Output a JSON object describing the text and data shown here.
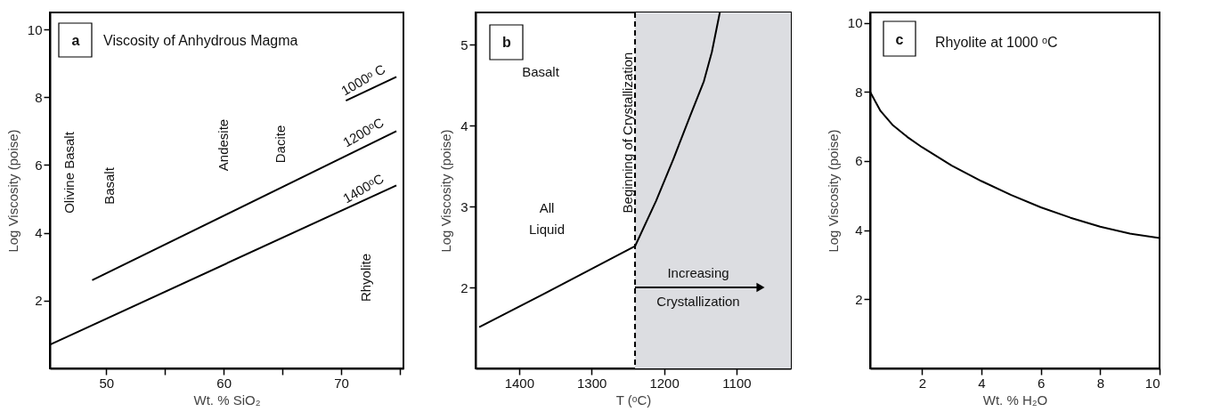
{
  "chart_data": [
    {
      "type": "line",
      "title": "Viscosity of Anhydrous Magma",
      "xlabel": "Wt. % SiO₂",
      "ylabel": "Log Viscosity (poise)",
      "xlim": [
        45.2,
        75.3
      ],
      "ylim": [
        0,
        10.5
      ],
      "xticks": [
        50,
        {
          "value": 55,
          "label": null
        },
        60,
        {
          "value": 65,
          "label": null
        },
        70,
        {
          "value": 75,
          "label": null
        }
      ],
      "yticks": [
        2,
        4,
        6,
        8,
        10
      ],
      "series": [
        {
          "name": "1000ᵒ C",
          "color": "#000000",
          "x": [
            70.4,
            74.7
          ],
          "values": [
            7.9,
            8.6
          ]
        },
        {
          "name": "1200ᵒC",
          "color": "#000000",
          "x": [
            48.8,
            74.7
          ],
          "values": [
            2.6,
            7.0
          ]
        },
        {
          "name": "1400ᵒC",
          "color": "#000000",
          "x": [
            45.2,
            74.7
          ],
          "values": [
            0.7,
            5.4
          ]
        }
      ],
      "annotations": [
        "a",
        "Olivine Basalt",
        "Basalt",
        "Andesite",
        "Dacite",
        "Rhyolite"
      ]
    },
    {
      "type": "line",
      "xlabel": "T (ᵒC)",
      "ylabel": "Log Viscosity (poise)",
      "xlim": [
        1460,
        1025
      ],
      "ylim": [
        1,
        5.4
      ],
      "xticks": [
        1400,
        1300,
        1200,
        1100
      ],
      "yticks": [
        2,
        3,
        4,
        5
      ],
      "x": [
        1455,
        1366,
        1240,
        1211,
        1187,
        1164,
        1145,
        1134,
        1123
      ],
      "series": [
        {
          "color": "#000000",
          "values": [
            1.51,
            1.92,
            2.51,
            3.07,
            3.59,
            4.12,
            4.55,
            4.91,
            5.4
          ]
        }
      ],
      "ref_lines": [
        {
          "axis": "x",
          "value": 1240,
          "label": "Beginning of Crystallization",
          "line_style": "dashed",
          "color": "#000000"
        }
      ],
      "bands": [
        {
          "axis": "x",
          "from": 1240,
          "to": 1025,
          "color": "#dcdde1"
        }
      ],
      "annotations": [
        "b",
        "Basalt",
        "All",
        "Liquid",
        "Increasing",
        "Crystallization"
      ]
    },
    {
      "type": "line",
      "title": "Rhyolite at 1000 ᵒC",
      "xlabel": "Wt. % H₂O",
      "ylabel": "Log Viscosity (poise)",
      "xlim": [
        0.25,
        10
      ],
      "ylim": [
        0,
        10.3
      ],
      "xticks": [
        2,
        4,
        6,
        8,
        10
      ],
      "yticks": [
        2,
        4,
        6,
        8,
        10
      ],
      "x": [
        0.25,
        0.6,
        1,
        1.5,
        2,
        3,
        4,
        5,
        6,
        7,
        8,
        9,
        10
      ],
      "series": [
        {
          "color": "#000000",
          "values": [
            8,
            7.45,
            7.05,
            6.7,
            6.4,
            5.87,
            5.42,
            5.02,
            4.66,
            4.36,
            4.1,
            3.9,
            3.77
          ]
        }
      ],
      "annotations": [
        "c"
      ]
    }
  ]
}
